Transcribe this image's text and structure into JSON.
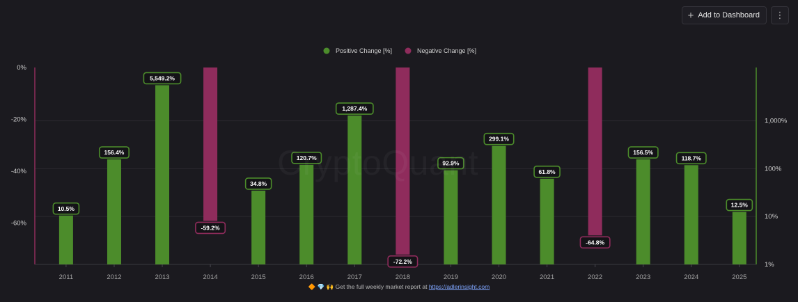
{
  "toolbar": {
    "add_label": "Add to Dashboard",
    "add_icon": "plus-icon",
    "more_icon": "vertical-dots-icon"
  },
  "watermark": "CryptoQuant",
  "footer": {
    "icons": "🔶 💎 🙌",
    "text": "Get the full weekly market report at",
    "link": "https://adlerinsight.com"
  },
  "colors": {
    "positive": "#4c8c2b",
    "negative": "#8f2c5c",
    "background": "#1b1a1f",
    "grid": "#2a292f"
  },
  "chart_data": {
    "type": "bar",
    "title": "",
    "grid": true,
    "legend_position": "top-center",
    "categories": [
      "2011",
      "2012",
      "2013",
      "2014",
      "2015",
      "2016",
      "2017",
      "2018",
      "2019",
      "2020",
      "2021",
      "2022",
      "2023",
      "2024",
      "2025"
    ],
    "series": [
      {
        "name": "Positive Change [%]",
        "axis": "right",
        "scale": "log",
        "values": [
          10.5,
          156.4,
          5549.2,
          null,
          34.8,
          120.7,
          1287.4,
          null,
          92.9,
          299.1,
          61.8,
          null,
          156.5,
          118.7,
          12.5
        ],
        "labels": [
          "10.5%",
          "156.4%",
          "5,549.2%",
          null,
          "34.8%",
          "120.7%",
          "1,287.4%",
          null,
          "92.9%",
          "299.1%",
          "61.8%",
          null,
          "156.5%",
          "118.7%",
          "12.5%"
        ]
      },
      {
        "name": "Negative Change [%]",
        "axis": "left",
        "scale": "linear",
        "values": [
          null,
          null,
          null,
          -59.2,
          null,
          null,
          null,
          -72.2,
          null,
          null,
          null,
          -64.8,
          null,
          null,
          null
        ],
        "labels": [
          null,
          null,
          null,
          "-59.2%",
          null,
          null,
          null,
          "-72.2%",
          null,
          null,
          null,
          "-64.8%",
          null,
          null,
          null
        ]
      }
    ],
    "y_left": {
      "ticks": [
        "0%",
        "-20%",
        "-40%",
        "-60%"
      ],
      "values": [
        0,
        -20,
        -40,
        -60
      ],
      "range": [
        -76,
        0
      ]
    },
    "y_right": {
      "ticks": [
        "1,000%",
        "100%",
        "10%",
        "1%"
      ],
      "values": [
        1000,
        100,
        10,
        1
      ],
      "range": [
        1,
        13000
      ],
      "scale": "log"
    }
  }
}
